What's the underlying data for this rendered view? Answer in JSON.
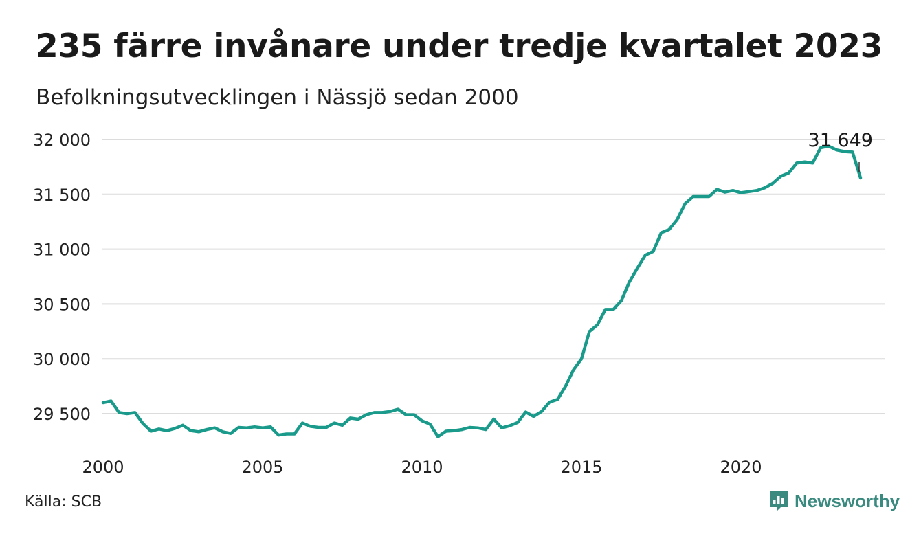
{
  "title": "235 färre invånare under tredje kvartalet 2023",
  "subtitle": "Befolkningsutvecklingen i Nässjö sedan 2000",
  "source": "Källa: SCB",
  "brand": {
    "name": "Newsworthy",
    "color": "#3a8a80"
  },
  "chart_data": {
    "type": "line",
    "title": "235 färre invånare under tredje kvartalet 2023",
    "subtitle": "Befolkningsutvecklingen i Nässjö sedan 2000",
    "xlabel": "",
    "ylabel": "",
    "x_ticks": [
      2000,
      2005,
      2010,
      2015,
      2020
    ],
    "x_range": [
      2000.0,
      2023.75
    ],
    "y_ticks": [
      29500,
      30000,
      30500,
      31000,
      31500,
      32000
    ],
    "y_tick_labels": [
      "29 500",
      "30 000",
      "30 500",
      "31 000",
      "31 500",
      "32 000"
    ],
    "ylim": [
      29250,
      32050
    ],
    "grid": "horizontal",
    "line_color": "#1a9a8a",
    "annotation": {
      "label": "31 649",
      "x": 2023.75,
      "y": 31649
    },
    "series": [
      {
        "x": [
          2000.0,
          2000.25,
          2000.5,
          2000.75,
          2001.0,
          2001.25,
          2001.5,
          2001.75,
          2002.0,
          2002.25,
          2002.5,
          2002.75,
          2003.0,
          2003.25,
          2003.5,
          2003.75,
          2004.0,
          2004.25,
          2004.5,
          2004.75,
          2005.0,
          2005.25,
          2005.5,
          2005.75,
          2006.0,
          2006.25,
          2006.5,
          2006.75,
          2007.0,
          2007.25,
          2007.5,
          2007.75,
          2008.0,
          2008.25,
          2008.5,
          2008.75,
          2009.0,
          2009.25,
          2009.5,
          2009.75,
          2010.0,
          2010.25,
          2010.5,
          2010.75,
          2011.0,
          2011.25,
          2011.5,
          2011.75,
          2012.0,
          2012.25,
          2012.5,
          2012.75,
          2013.0,
          2013.25,
          2013.5,
          2013.75,
          2014.0,
          2014.25,
          2014.5,
          2014.75,
          2015.0,
          2015.25,
          2015.5,
          2015.75,
          2016.0,
          2016.25,
          2016.5,
          2016.75,
          2017.0,
          2017.25,
          2017.5,
          2017.75,
          2018.0,
          2018.25,
          2018.5,
          2018.75,
          2019.0,
          2019.25,
          2019.5,
          2019.75,
          2020.0,
          2020.25,
          2020.5,
          2020.75,
          2021.0,
          2021.25,
          2021.5,
          2021.75,
          2022.0,
          2022.25,
          2022.5,
          2022.75,
          2023.0,
          2023.25,
          2023.5,
          2023.75
        ],
        "values": [
          29600,
          29615,
          29510,
          29500,
          29510,
          29410,
          29340,
          29360,
          29345,
          29365,
          29395,
          29345,
          29335,
          29355,
          29370,
          29335,
          29320,
          29375,
          29370,
          29380,
          29370,
          29380,
          29305,
          29315,
          29315,
          29415,
          29385,
          29375,
          29375,
          29415,
          29395,
          29460,
          29450,
          29490,
          29510,
          29510,
          29520,
          29540,
          29490,
          29490,
          29435,
          29405,
          29290,
          29340,
          29345,
          29355,
          29375,
          29370,
          29355,
          29450,
          29370,
          29390,
          29420,
          29515,
          29475,
          29520,
          29605,
          29630,
          29750,
          29900,
          30000,
          30250,
          30310,
          30450,
          30450,
          30530,
          30700,
          30825,
          30945,
          30980,
          31150,
          31180,
          31270,
          31415,
          31480,
          31480,
          31480,
          31545,
          31520,
          31535,
          31515,
          31525,
          31535,
          31560,
          31600,
          31665,
          31695,
          31785,
          31795,
          31785,
          31925,
          31940,
          31905,
          31890,
          31885,
          31649
        ]
      }
    ]
  }
}
